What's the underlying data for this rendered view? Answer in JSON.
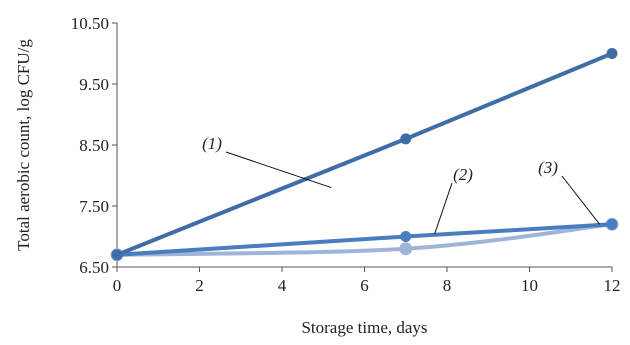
{
  "chart_data": {
    "type": "line",
    "xlabel": "Storage time, days",
    "ylabel": "Total aerobic count, log CFU/g",
    "xlim": [
      0,
      12
    ],
    "ylim": [
      6.5,
      10.5
    ],
    "x_ticks": [
      0,
      2,
      4,
      6,
      8,
      10,
      12
    ],
    "y_ticks": [
      6.5,
      7.5,
      8.5,
      9.5,
      10.5
    ],
    "x_tick_labels": [
      "0",
      "2",
      "4",
      "6",
      "8",
      "10",
      "12"
    ],
    "y_tick_labels": [
      "6.50",
      "7.50",
      "8.50",
      "9.50",
      "10.50"
    ],
    "grid": false,
    "series": [
      {
        "label": "(1)",
        "x": [
          0,
          7,
          12
        ],
        "y": [
          6.7,
          8.6,
          10.0
        ],
        "color": "#3f6ea6",
        "smooth": false
      },
      {
        "label": "(2)",
        "x": [
          0,
          7,
          12
        ],
        "y": [
          6.7,
          7.0,
          7.2
        ],
        "color": "#4a7cc0",
        "smooth": false
      },
      {
        "label": "(3)",
        "x": [
          0,
          7,
          12
        ],
        "y": [
          6.7,
          6.8,
          7.2
        ],
        "color": "#9fb4d6",
        "smooth": true
      }
    ]
  }
}
